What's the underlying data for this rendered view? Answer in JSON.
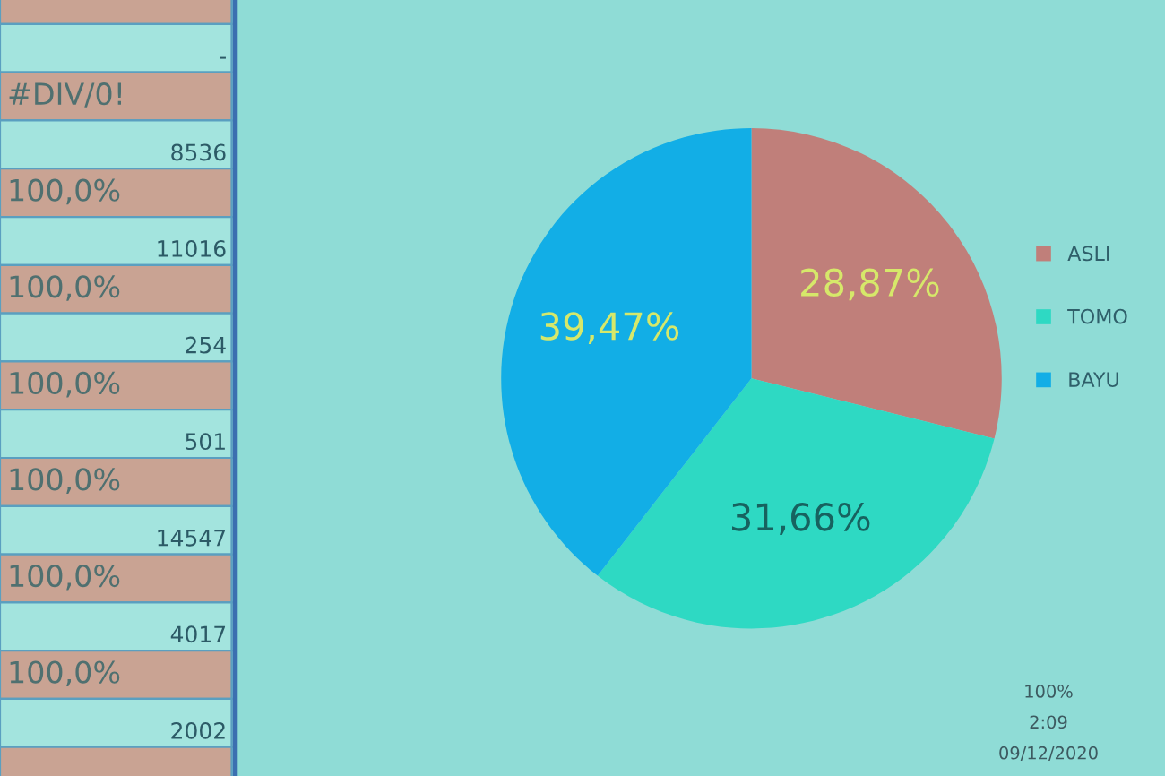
{
  "chart_data": [
    {
      "type": "other",
      "annotations": [
        "-",
        "#DIV/0!",
        "8536",
        "100,0%",
        "11016",
        "100,0%",
        "254",
        "100,0%",
        "501",
        "100,0%",
        "14547",
        "100,0%",
        "4017",
        "100,0%",
        "2002"
      ]
    },
    {
      "type": "pie",
      "categories": [
        "ASLI",
        "TOMO",
        "BAYU"
      ],
      "values": [
        28.87,
        31.66,
        39.47
      ],
      "colors": [
        "#c07f7a",
        "#2ed9c3",
        "#12aee6"
      ],
      "value_labels": [
        "28,87%",
        "31,66%",
        "39,47%"
      ],
      "legend": "right"
    },
    {
      "type": "other",
      "annotations": [
        "100%",
        "2:09",
        "09/12/2020"
      ]
    }
  ]
}
